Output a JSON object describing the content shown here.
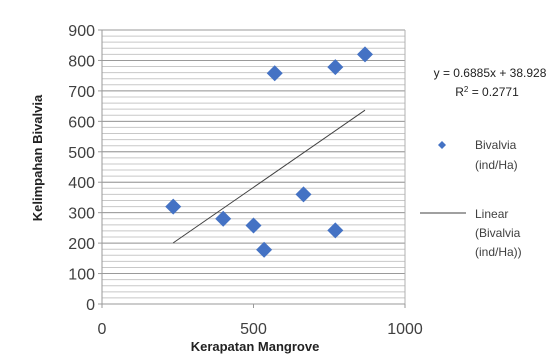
{
  "chart_data": {
    "type": "scatter",
    "xlabel": "Kerapatan Mangrove",
    "ylabel": "Kelimpahan Bivalvia",
    "xlim": [
      0,
      1000
    ],
    "ylim": [
      0,
      900
    ],
    "x_ticks": [
      "0",
      "500",
      "1000"
    ],
    "y_ticks": [
      "0",
      "100",
      "200",
      "300",
      "400",
      "500",
      "600",
      "700",
      "800",
      "900"
    ],
    "grid": "horizontal",
    "legend_position": "right",
    "series": [
      {
        "name_lines": [
          "Bivalvia",
          "(ind/Ha)"
        ],
        "marker": "diamond",
        "color": "#4472C4",
        "points": [
          {
            "x": 235,
            "y": 320
          },
          {
            "x": 400,
            "y": 280
          },
          {
            "x": 500,
            "y": 258
          },
          {
            "x": 535,
            "y": 178
          },
          {
            "x": 570,
            "y": 758
          },
          {
            "x": 665,
            "y": 360
          },
          {
            "x": 770,
            "y": 242
          },
          {
            "x": 770,
            "y": 778
          },
          {
            "x": 868,
            "y": 820
          }
        ]
      }
    ],
    "trendline": {
      "name_lines": [
        "Linear",
        "(Bivalvia",
        "(ind/Ha))"
      ],
      "slope": 0.6885,
      "intercept": 38.928,
      "x_range": [
        235,
        868
      ],
      "color": "#404040",
      "equation_text": "y = 0.6885x + 38.928",
      "r2_prefix": "R",
      "r2_sup": "2",
      "r2_value": " = 0.2771"
    }
  }
}
